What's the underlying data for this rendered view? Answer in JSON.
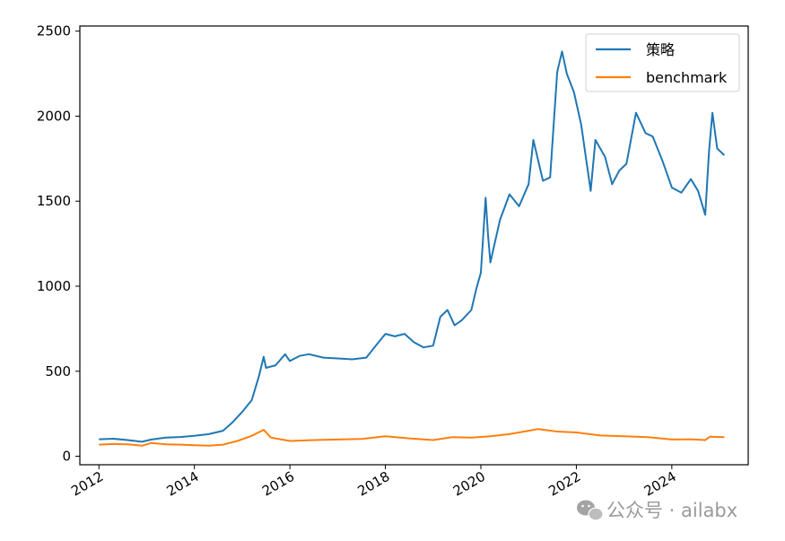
{
  "chart_data": {
    "type": "line",
    "title": "",
    "xlabel": "",
    "ylabel": "",
    "xlim": [
      2011.6,
      2025.6
    ],
    "ylim": [
      -50,
      2530
    ],
    "x_ticks": [
      2012,
      2014,
      2016,
      2018,
      2020,
      2022,
      2024
    ],
    "x_tick_labels": [
      "2012",
      "2014",
      "2016",
      "2018",
      "2020",
      "2022",
      "2024"
    ],
    "y_ticks": [
      0,
      500,
      1000,
      1500,
      2000,
      2500
    ],
    "y_tick_labels": [
      "0",
      "500",
      "1000",
      "1500",
      "2000",
      "2500"
    ],
    "grid": false,
    "legend_position": "top-right",
    "series": [
      {
        "name": "策略",
        "color": "#1f77b4",
        "points": [
          [
            2012.0,
            100
          ],
          [
            2012.3,
            103
          ],
          [
            2012.6,
            95
          ],
          [
            2012.9,
            85
          ],
          [
            2013.1,
            98
          ],
          [
            2013.4,
            110
          ],
          [
            2013.7,
            113
          ],
          [
            2014.0,
            120
          ],
          [
            2014.3,
            130
          ],
          [
            2014.6,
            150
          ],
          [
            2014.8,
            200
          ],
          [
            2015.0,
            260
          ],
          [
            2015.2,
            330
          ],
          [
            2015.35,
            470
          ],
          [
            2015.45,
            585
          ],
          [
            2015.5,
            520
          ],
          [
            2015.7,
            535
          ],
          [
            2015.9,
            600
          ],
          [
            2016.0,
            560
          ],
          [
            2016.2,
            590
          ],
          [
            2016.4,
            600
          ],
          [
            2016.7,
            580
          ],
          [
            2017.0,
            575
          ],
          [
            2017.3,
            570
          ],
          [
            2017.6,
            580
          ],
          [
            2017.8,
            650
          ],
          [
            2018.0,
            720
          ],
          [
            2018.2,
            705
          ],
          [
            2018.4,
            720
          ],
          [
            2018.6,
            670
          ],
          [
            2018.8,
            640
          ],
          [
            2019.0,
            650
          ],
          [
            2019.15,
            820
          ],
          [
            2019.3,
            860
          ],
          [
            2019.45,
            770
          ],
          [
            2019.6,
            800
          ],
          [
            2019.8,
            860
          ],
          [
            2019.9,
            980
          ],
          [
            2020.0,
            1080
          ],
          [
            2020.1,
            1520
          ],
          [
            2020.15,
            1300
          ],
          [
            2020.2,
            1140
          ],
          [
            2020.4,
            1390
          ],
          [
            2020.6,
            1540
          ],
          [
            2020.8,
            1470
          ],
          [
            2021.0,
            1600
          ],
          [
            2021.1,
            1860
          ],
          [
            2021.3,
            1620
          ],
          [
            2021.45,
            1640
          ],
          [
            2021.6,
            2260
          ],
          [
            2021.7,
            2380
          ],
          [
            2021.8,
            2250
          ],
          [
            2021.95,
            2140
          ],
          [
            2022.1,
            1950
          ],
          [
            2022.3,
            1560
          ],
          [
            2022.4,
            1860
          ],
          [
            2022.6,
            1760
          ],
          [
            2022.75,
            1600
          ],
          [
            2022.9,
            1680
          ],
          [
            2023.05,
            1720
          ],
          [
            2023.25,
            2020
          ],
          [
            2023.45,
            1900
          ],
          [
            2023.6,
            1880
          ],
          [
            2023.8,
            1740
          ],
          [
            2024.0,
            1580
          ],
          [
            2024.2,
            1550
          ],
          [
            2024.4,
            1630
          ],
          [
            2024.55,
            1560
          ],
          [
            2024.7,
            1420
          ],
          [
            2024.78,
            1800
          ],
          [
            2024.85,
            2020
          ],
          [
            2024.95,
            1810
          ],
          [
            2025.1,
            1770
          ]
        ]
      },
      {
        "name": "benchmark",
        "color": "#ff7f0e",
        "points": [
          [
            2012.0,
            68
          ],
          [
            2012.3,
            72
          ],
          [
            2012.6,
            70
          ],
          [
            2012.9,
            62
          ],
          [
            2013.1,
            78
          ],
          [
            2013.4,
            70
          ],
          [
            2013.7,
            68
          ],
          [
            2014.0,
            65
          ],
          [
            2014.3,
            62
          ],
          [
            2014.6,
            68
          ],
          [
            2014.9,
            90
          ],
          [
            2015.2,
            120
          ],
          [
            2015.45,
            155
          ],
          [
            2015.6,
            110
          ],
          [
            2015.8,
            100
          ],
          [
            2016.0,
            90
          ],
          [
            2016.5,
            95
          ],
          [
            2017.0,
            98
          ],
          [
            2017.5,
            102
          ],
          [
            2018.0,
            118
          ],
          [
            2018.5,
            105
          ],
          [
            2019.0,
            95
          ],
          [
            2019.4,
            112
          ],
          [
            2019.8,
            110
          ],
          [
            2020.2,
            118
          ],
          [
            2020.6,
            130
          ],
          [
            2021.0,
            150
          ],
          [
            2021.2,
            160
          ],
          [
            2021.6,
            145
          ],
          [
            2022.0,
            140
          ],
          [
            2022.5,
            122
          ],
          [
            2023.0,
            118
          ],
          [
            2023.5,
            112
          ],
          [
            2024.0,
            98
          ],
          [
            2024.4,
            100
          ],
          [
            2024.7,
            95
          ],
          [
            2024.8,
            115
          ],
          [
            2025.1,
            112
          ]
        ]
      }
    ]
  },
  "watermark": {
    "text": "公众号 · ailabx",
    "icon": "wechat-icon"
  }
}
